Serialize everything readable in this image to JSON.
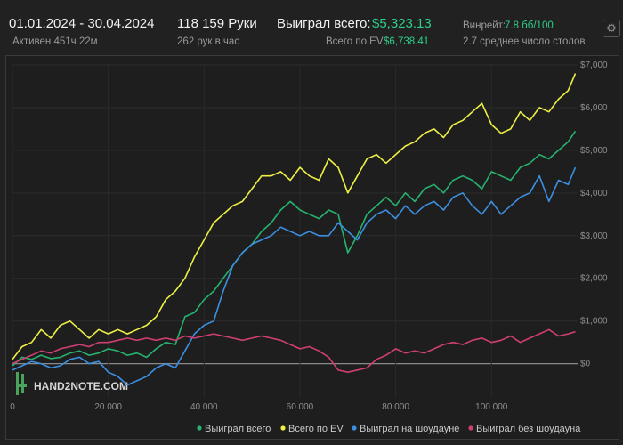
{
  "header": {
    "date_range": "01.01.2024 - 30.04.2024",
    "active": "Активен 451ч 22м",
    "hands": "118 159 Руки",
    "hands_per_hour": "262 рук в час",
    "won_total_label": "Выиграл всего:",
    "won_total_value": "$5,323.13",
    "ev_label": "Всего по EV:",
    "ev_value": "$6,738.41",
    "winrate_label": "Винрейт:",
    "winrate_value": "7.8 бб/100",
    "tables": "2.7 среднее число столов",
    "settings_icon": "gear-icon"
  },
  "watermark": "HAND2NOTE.COM",
  "chart_data": {
    "type": "line",
    "xlim": [
      0,
      118159
    ],
    "ylim": [
      -800,
      7000
    ],
    "x_ticks": [
      0,
      20000,
      40000,
      60000,
      80000,
      100000
    ],
    "x_tick_labels": [
      "0",
      "20 000",
      "40 000",
      "60 000",
      "80 000",
      "100 000"
    ],
    "y_ticks": [
      0,
      1000,
      2000,
      3000,
      4000,
      5000,
      6000,
      7000
    ],
    "y_tick_labels": [
      "$0",
      "$1,000",
      "$2,000",
      "$3,000",
      "$4,000",
      "$5,000",
      "$6,000",
      "$7,000"
    ],
    "legend_position": "bottom-right",
    "series": [
      {
        "name": "Выиграл всего",
        "color": "#26b36f",
        "x": [
          0,
          2000,
          4000,
          6000,
          8000,
          10000,
          12000,
          14000,
          16000,
          18000,
          20000,
          22000,
          24000,
          26000,
          28000,
          30000,
          32000,
          34000,
          36000,
          38000,
          40000,
          42000,
          44000,
          46000,
          48000,
          50000,
          52000,
          54000,
          56000,
          58000,
          60000,
          62000,
          64000,
          66000,
          68000,
          70000,
          72000,
          74000,
          76000,
          78000,
          80000,
          82000,
          84000,
          86000,
          88000,
          90000,
          92000,
          94000,
          96000,
          98000,
          100000,
          102000,
          104000,
          106000,
          108000,
          110000,
          112000,
          114000,
          116000,
          117500
        ],
        "values": [
          -50,
          150,
          100,
          200,
          120,
          150,
          250,
          300,
          200,
          250,
          350,
          300,
          200,
          250,
          150,
          350,
          500,
          450,
          1100,
          1200,
          1500,
          1700,
          2000,
          2300,
          2600,
          2800,
          3100,
          3300,
          3600,
          3800,
          3600,
          3500,
          3400,
          3600,
          3500,
          2600,
          3000,
          3500,
          3700,
          3900,
          3700,
          4000,
          3800,
          4100,
          4200,
          4000,
          4300,
          4400,
          4300,
          4100,
          4500,
          4400,
          4300,
          4600,
          4700,
          4900,
          4800,
          5000,
          5200,
          5450
        ]
      },
      {
        "name": "Всего по EV",
        "color": "#eef044",
        "x": [
          0,
          2000,
          4000,
          6000,
          8000,
          10000,
          12000,
          14000,
          16000,
          18000,
          20000,
          22000,
          24000,
          26000,
          28000,
          30000,
          32000,
          34000,
          36000,
          38000,
          40000,
          42000,
          44000,
          46000,
          48000,
          50000,
          52000,
          54000,
          56000,
          58000,
          60000,
          62000,
          64000,
          66000,
          68000,
          70000,
          72000,
          74000,
          76000,
          78000,
          80000,
          82000,
          84000,
          86000,
          88000,
          90000,
          92000,
          94000,
          96000,
          98000,
          100000,
          102000,
          104000,
          106000,
          108000,
          110000,
          112000,
          114000,
          116000,
          117500
        ],
        "values": [
          100,
          400,
          500,
          800,
          600,
          900,
          1000,
          800,
          600,
          800,
          700,
          800,
          700,
          800,
          900,
          1100,
          1500,
          1700,
          2000,
          2500,
          2900,
          3300,
          3500,
          3700,
          3800,
          4100,
          4400,
          4400,
          4500,
          4300,
          4600,
          4400,
          4300,
          4800,
          4600,
          4000,
          4400,
          4800,
          4900,
          4700,
          4900,
          5100,
          5200,
          5400,
          5500,
          5300,
          5600,
          5700,
          5900,
          6100,
          5600,
          5400,
          5500,
          5900,
          5700,
          6000,
          5900,
          6200,
          6400,
          6800
        ]
      },
      {
        "name": "Выиграл на шоудауне",
        "color": "#3c8fe0",
        "x": [
          0,
          2000,
          4000,
          6000,
          8000,
          10000,
          12000,
          14000,
          16000,
          18000,
          20000,
          22000,
          24000,
          26000,
          28000,
          30000,
          32000,
          34000,
          36000,
          38000,
          40000,
          42000,
          44000,
          46000,
          48000,
          50000,
          52000,
          54000,
          56000,
          58000,
          60000,
          62000,
          64000,
          66000,
          68000,
          70000,
          72000,
          74000,
          76000,
          78000,
          80000,
          82000,
          84000,
          86000,
          88000,
          90000,
          92000,
          94000,
          96000,
          98000,
          100000,
          102000,
          104000,
          106000,
          108000,
          110000,
          112000,
          114000,
          116000,
          117500
        ],
        "values": [
          -150,
          -50,
          50,
          0,
          -100,
          -50,
          100,
          150,
          0,
          50,
          -200,
          -300,
          -500,
          -400,
          -300,
          -100,
          0,
          -100,
          300,
          700,
          900,
          1000,
          1700,
          2300,
          2600,
          2800,
          2900,
          3000,
          3200,
          3100,
          3000,
          3100,
          3000,
          3000,
          3300,
          3100,
          2900,
          3300,
          3500,
          3600,
          3400,
          3700,
          3500,
          3700,
          3800,
          3600,
          3900,
          4000,
          3700,
          3500,
          3800,
          3500,
          3700,
          3900,
          4000,
          4400,
          3800,
          4300,
          4200,
          4600
        ]
      },
      {
        "name": "Выиграл без шоудауна",
        "color": "#d03f72",
        "x": [
          0,
          2000,
          4000,
          6000,
          8000,
          10000,
          12000,
          14000,
          16000,
          18000,
          20000,
          22000,
          24000,
          26000,
          28000,
          30000,
          32000,
          34000,
          36000,
          38000,
          40000,
          42000,
          44000,
          46000,
          48000,
          50000,
          52000,
          54000,
          56000,
          58000,
          60000,
          62000,
          64000,
          66000,
          68000,
          70000,
          72000,
          74000,
          76000,
          78000,
          80000,
          82000,
          84000,
          86000,
          88000,
          90000,
          92000,
          94000,
          96000,
          98000,
          100000,
          102000,
          104000,
          106000,
          108000,
          110000,
          112000,
          114000,
          116000,
          117500
        ],
        "values": [
          0,
          100,
          200,
          300,
          250,
          350,
          400,
          450,
          400,
          500,
          500,
          550,
          600,
          550,
          600,
          550,
          600,
          550,
          650,
          600,
          650,
          700,
          650,
          600,
          550,
          600,
          650,
          600,
          550,
          450,
          350,
          400,
          300,
          150,
          -150,
          -200,
          -150,
          -100,
          100,
          200,
          350,
          250,
          300,
          250,
          350,
          450,
          500,
          450,
          550,
          600,
          500,
          550,
          650,
          500,
          600,
          700,
          800,
          650,
          700,
          750
        ]
      }
    ]
  }
}
